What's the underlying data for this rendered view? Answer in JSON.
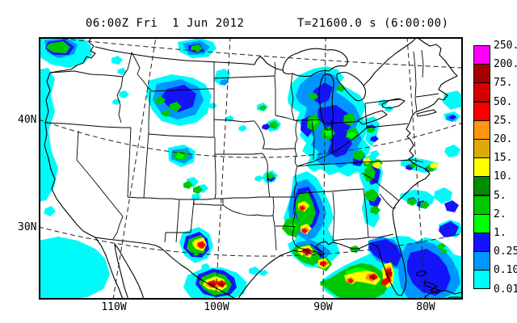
{
  "header": {
    "valid_time": "06:00Z Fri  1 Jun 2012",
    "forecast_time": "T=21600.0 s (6:00:00)"
  },
  "y_axis": {
    "labels": [
      "40N",
      "30N"
    ]
  },
  "x_axis": {
    "labels": [
      "110W",
      "100W",
      "90W",
      "80W"
    ]
  },
  "colorbar": {
    "values": [
      "250.",
      "200.",
      "75.",
      "50.",
      "25.",
      "20.",
      "15.",
      "10.",
      "5.",
      "2.",
      "1.",
      "0.25",
      "0.10",
      "0.01"
    ],
    "colors": [
      "#FA00FA",
      "#A50000",
      "#D70000",
      "#FA0000",
      "#FF960F",
      "#DCAA0F",
      "#FFFF00",
      "#008C00",
      "#00C800",
      "#00FF00",
      "#1414FA",
      "#0096FF",
      "#00FAFA"
    ]
  },
  "chart_data": {
    "type": "heatmap",
    "subtype": "geographic-precipitation-map",
    "title": "06:00Z Fri  1 Jun 2012   T=21600.0 s (6:00:00)",
    "region": "Continental United States",
    "lat_ticks": [
      "40N",
      "30N"
    ],
    "lon_ticks": [
      "110W",
      "100W",
      "90W",
      "80W"
    ],
    "legend_levels": [
      0.01,
      0.1,
      0.25,
      1,
      2,
      5,
      10,
      15,
      20,
      25,
      50,
      75,
      200,
      250
    ],
    "legend_colors_low_to_high": [
      "#00FAFA",
      "#0096FF",
      "#1414FA",
      "#00FF00",
      "#00C800",
      "#008C00",
      "#FFFF00",
      "#DCAA0F",
      "#FF960F",
      "#FA0000",
      "#D70000",
      "#A50000",
      "#FA00FA"
    ],
    "grid": "dashed 10-degree graticule",
    "legend_position": "right",
    "features": [
      {
        "area": "Pacific Northwest coast (offshore WA)",
        "max_band": "2-5"
      },
      {
        "area": "Oregon / N. California coastline",
        "max_band": "0.01-0.10"
      },
      {
        "area": "Offshore Southern California / Baja",
        "max_band": "0.01-0.10"
      },
      {
        "area": "Montana / North Dakota border",
        "max_band": "1-2"
      },
      {
        "area": "East Wyoming / W. South Dakota",
        "max_band": "1-5"
      },
      {
        "area": "Northern Colorado",
        "max_band": "2-5"
      },
      {
        "area": "Upper Midwest WI/IL/MI/IN/OH complex",
        "max_band": "2-10"
      },
      {
        "area": "Iowa / Missouri scattered showers",
        "max_band": "1-2"
      },
      {
        "area": "Mississippi Valley squall line (MO to LA)",
        "max_band": "50-75"
      },
      {
        "area": "Louisiana coast convective cells",
        "max_band": "75-200"
      },
      {
        "area": "West Texas cell",
        "max_band": "50-75"
      },
      {
        "area": "South Texas / Rio Grande cells",
        "max_band": "75-200"
      },
      {
        "area": "Gulf of Mexico / South Florida system",
        "max_band": "75-200"
      },
      {
        "area": "Atlantic east of Florida / Bahamas",
        "max_band": "0.25-1"
      },
      {
        "area": "Georgia / Alabama band",
        "max_band": "10-20"
      },
      {
        "area": "Tennessee Valley cells",
        "max_band": "10-15"
      },
      {
        "area": "Mid-Atlantic VA/NC cells",
        "max_band": "10-15"
      },
      {
        "area": "Offshore Maine",
        "max_band": "0.10-0.25"
      }
    ]
  }
}
